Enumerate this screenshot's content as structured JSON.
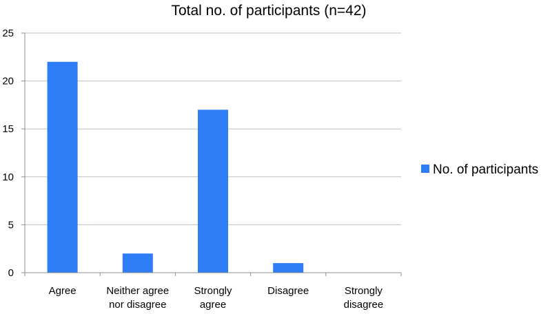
{
  "chart_data": {
    "type": "bar",
    "title": "Total no. of participants (n=42)",
    "categories": [
      [
        "Agree"
      ],
      [
        "Neither agree",
        "nor disagree"
      ],
      [
        "Strongly",
        "agree"
      ],
      [
        "Disagree"
      ],
      [
        "Strongly",
        "disagree"
      ]
    ],
    "series": [
      {
        "name": "No. of participants",
        "values": [
          22,
          2,
          17,
          1,
          0
        ]
      }
    ],
    "ylim": [
      0,
      25
    ],
    "yticks": [
      0,
      5,
      10,
      15,
      20,
      25
    ],
    "grid": true,
    "legend": "right",
    "colors": {
      "bar": "#2e7df6",
      "grid": "#bfbfbf",
      "axis": "#8c8c8c"
    }
  }
}
